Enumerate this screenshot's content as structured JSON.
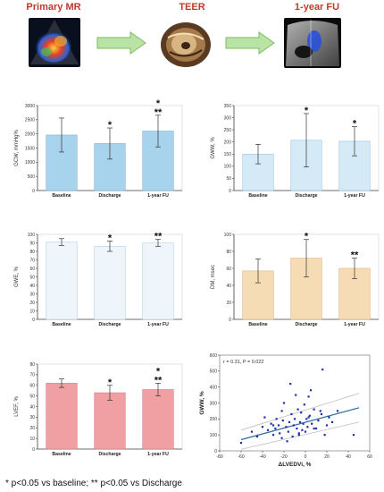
{
  "header": {
    "stage1": "Primary MR",
    "stage2": "TEER",
    "stage3": "1-year FU",
    "colors": {
      "title": "#c0392b",
      "arrow_fill": "#b9e4a6",
      "arrow_stroke": "#7dbb62"
    }
  },
  "footnote": "* p<0.05 vs baseline; ** p<0.05 vs Discharge",
  "chart_data": [
    {
      "id": "gcw",
      "type": "bar",
      "ylabel": "GCW, mmHg%",
      "categories": [
        "Baseline",
        "Discharge",
        "1-year FU"
      ],
      "values": [
        1960,
        1660,
        2100
      ],
      "errors": [
        600,
        550,
        560
      ],
      "ylim": [
        0,
        3000
      ],
      "yticks": [
        0,
        500,
        1000,
        1500,
        2000,
        2500,
        3000
      ],
      "annotations": [
        "",
        "*",
        "*\n**"
      ],
      "color": "#a8d3ec",
      "stroke": "#7fb6d8"
    },
    {
      "id": "gww",
      "type": "bar",
      "ylabel": "GWW, %",
      "categories": [
        "Baseline",
        "Discharge",
        "1-year FU"
      ],
      "values": [
        150,
        207,
        203
      ],
      "errors": [
        40,
        110,
        60
      ],
      "ylim": [
        0,
        350
      ],
      "yticks": [
        0,
        50,
        100,
        150,
        200,
        250,
        300,
        350
      ],
      "annotations": [
        "",
        "*",
        "*"
      ],
      "color": "#d4eaf6",
      "stroke": "#9cc6e0"
    },
    {
      "id": "gwe",
      "type": "bar",
      "ylabel": "GWE, %",
      "categories": [
        "Baseline",
        "Discharge",
        "1-year FU"
      ],
      "values": [
        91,
        86,
        90
      ],
      "errors": [
        4,
        6,
        4
      ],
      "ylim": [
        0,
        100
      ],
      "yticks": [
        0,
        10,
        20,
        30,
        40,
        50,
        60,
        70,
        80,
        90,
        100
      ],
      "annotations": [
        "",
        "*",
        "**"
      ],
      "color": "#eef5fb",
      "stroke": "#b9d3e6"
    },
    {
      "id": "dm",
      "type": "bar",
      "ylabel": "DM, msec",
      "categories": [
        "Baseline",
        "Discharge",
        "1-year FU"
      ],
      "values": [
        57,
        72,
        60
      ],
      "errors": [
        14,
        22,
        12
      ],
      "ylim": [
        0,
        100
      ],
      "yticks": [
        0,
        20,
        40,
        60,
        80,
        100
      ],
      "annotations": [
        "",
        "*",
        "**"
      ],
      "color": "#f6dcb4",
      "stroke": "#ddb27c"
    },
    {
      "id": "lvef",
      "type": "bar",
      "ylabel": "LVEF, %",
      "categories": [
        "Baseline",
        "Discharge",
        "1-year FU"
      ],
      "values": [
        62,
        53,
        56
      ],
      "errors": [
        4,
        7,
        6
      ],
      "ylim": [
        0,
        80
      ],
      "yticks": [
        0,
        10,
        20,
        30,
        40,
        50,
        60,
        70,
        80
      ],
      "annotations": [
        "",
        "*",
        "*\n**"
      ],
      "color": "#f0a0a3",
      "stroke": "#d47c80"
    },
    {
      "id": "scatter",
      "type": "scatter",
      "xlabel": "ΔLVEDVi, %",
      "ylabel": "GWW, %",
      "annotation": "r = 0.31, P = 0.022",
      "xlim": [
        -80,
        60
      ],
      "ylim": [
        0,
        600
      ],
      "xticks": [
        -80,
        -60,
        -40,
        -20,
        0,
        20,
        40,
        60
      ],
      "yticks": [
        0,
        100,
        200,
        300,
        400,
        500,
        600
      ],
      "point_color": "#1f2fa8",
      "line_color": "#2c6e9b",
      "x": [
        -60,
        -50,
        -45,
        -40,
        -38,
        -35,
        -32,
        -30,
        -28,
        -27,
        -25,
        -24,
        -22,
        -21,
        -20,
        -18,
        -16,
        -15,
        -14,
        -13,
        -12,
        -11,
        -10,
        -9,
        -8,
        -7,
        -6,
        -5,
        -4,
        -3,
        -2,
        -1,
        0,
        1,
        2,
        3,
        4,
        5,
        6,
        8,
        10,
        12,
        14,
        16,
        18,
        20,
        22,
        25,
        30,
        -17,
        -6,
        3,
        -30,
        15,
        -22,
        8,
        45
      ],
      "y": [
        50,
        120,
        90,
        150,
        210,
        130,
        170,
        100,
        140,
        200,
        160,
        110,
        250,
        190,
        300,
        150,
        120,
        180,
        420,
        230,
        90,
        160,
        200,
        350,
        140,
        260,
        110,
        180,
        240,
        130,
        170,
        290,
        120,
        200,
        150,
        340,
        220,
        380,
        170,
        260,
        140,
        190,
        250,
        510,
        100,
        160,
        210,
        180,
        250,
        60,
        100,
        210,
        160,
        230,
        80,
        140,
        100
      ],
      "fit": [
        [
          -60,
          70
        ],
        [
          50,
          270
        ]
      ],
      "ci_upper": [
        [
          -60,
          130
        ],
        [
          50,
          360
        ]
      ],
      "ci_lower": [
        [
          -60,
          10
        ],
        [
          50,
          180
        ]
      ]
    }
  ]
}
